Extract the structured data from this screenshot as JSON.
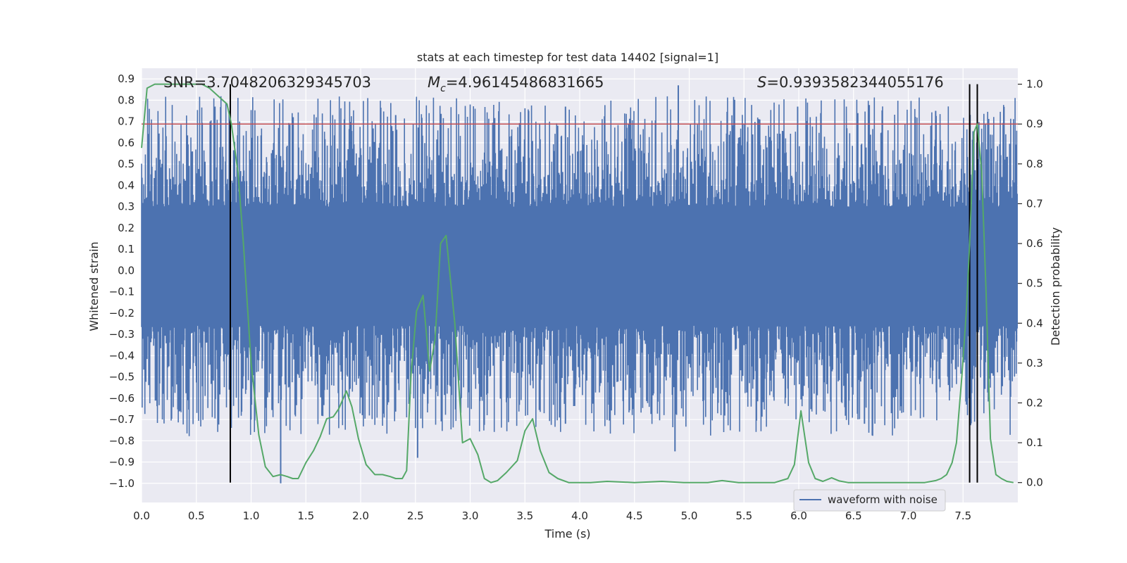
{
  "chart_data": {
    "type": "line",
    "title": "stats at each timestep for test data 14402 [signal=1]",
    "xlabel": "Time (s)",
    "ylabel": "Whitened strain",
    "y2label": "Detection probability",
    "xlim": [
      0.0,
      8.0
    ],
    "ylim": [
      -1.09,
      0.95
    ],
    "y2lim": [
      -0.05,
      1.04
    ],
    "xticks": [
      0.0,
      0.5,
      1.0,
      1.5,
      2.0,
      2.5,
      3.0,
      3.5,
      4.0,
      4.5,
      5.0,
      5.5,
      6.0,
      6.5,
      7.0,
      7.5
    ],
    "xtick_labels": [
      "0.0",
      "0.5",
      "1.0",
      "1.5",
      "2.0",
      "2.5",
      "3.0",
      "3.5",
      "4.0",
      "4.5",
      "5.0",
      "5.5",
      "6.0",
      "6.5",
      "7.0",
      "7.5"
    ],
    "yticks": [
      0.9,
      0.8,
      0.7,
      0.6,
      0.5,
      0.4,
      0.3,
      0.2,
      0.1,
      0.0,
      -0.1,
      -0.2,
      -0.3,
      -0.4,
      -0.5,
      -0.6,
      -0.7,
      -0.8,
      -0.9,
      -1.0
    ],
    "ytick_labels": [
      "0.9",
      "0.8",
      "0.7",
      "0.6",
      "0.5",
      "0.4",
      "0.3",
      "0.2",
      "0.1",
      "0.0",
      "−0.1",
      "−0.2",
      "−0.3",
      "−0.4",
      "−0.5",
      "−0.6",
      "−0.7",
      "−0.8",
      "−0.9",
      "−1.0"
    ],
    "y2ticks": [
      1.0,
      0.9,
      0.8,
      0.7,
      0.6,
      0.5,
      0.4,
      0.3,
      0.2,
      0.1,
      0.0
    ],
    "y2tick_labels": [
      "1.0",
      "0.9",
      "0.8",
      "0.7",
      "0.6",
      "0.5",
      "0.4",
      "0.3",
      "0.2",
      "0.1",
      "0.0"
    ],
    "annotations": {
      "snr": "SNR=3.7048206329345703",
      "mc_symbol": "M",
      "mc_sub": "c",
      "mc_value": "=4.96145486831665",
      "s_symbol": "S",
      "s_value": "=0.9393582344055176"
    },
    "legend": {
      "label": "waveform with noise",
      "location": "lower right"
    },
    "threshold_line": {
      "value": 0.9,
      "axis": "y2",
      "color": "#c44e52"
    },
    "vertical_lines": [
      {
        "x": 0.81,
        "y_top": 1.0,
        "y_bottom": 0.0,
        "axis": "y2"
      },
      {
        "x": 7.56,
        "y_top": 1.0,
        "y_bottom": 0.0,
        "axis": "y2"
      },
      {
        "x": 7.63,
        "y_top": 1.0,
        "y_bottom": 0.0,
        "axis": "y2"
      }
    ],
    "series": [
      {
        "name": "waveform with noise",
        "kind": "noise_envelope",
        "axis": "y",
        "color": "#4c72b0",
        "dense_band": [
          -0.26,
          0.3
        ],
        "max_abs_peak": 1.0,
        "notable_peaks": [
          {
            "x": 0.67,
            "y": 0.77
          },
          {
            "x": 0.8,
            "y": 0.75
          },
          {
            "x": 2.32,
            "y": 0.73
          },
          {
            "x": 3.87,
            "y": 0.77
          },
          {
            "x": 4.9,
            "y": 0.87
          },
          {
            "x": 5.99,
            "y": 0.77
          },
          {
            "x": 7.25,
            "y": 0.75
          },
          {
            "x": 1.27,
            "y": -1.0
          },
          {
            "x": 2.52,
            "y": -0.88
          },
          {
            "x": 4.87,
            "y": -0.85
          },
          {
            "x": 3.87,
            "y": -0.72
          },
          {
            "x": 6.6,
            "y": -0.72
          }
        ]
      },
      {
        "name": "detection probability",
        "kind": "line",
        "axis": "y2",
        "color": "#55a868",
        "x": [
          0.0,
          0.05,
          0.12,
          0.25,
          0.4,
          0.55,
          0.62,
          0.7,
          0.78,
          0.82,
          0.88,
          0.93,
          1.0,
          1.07,
          1.13,
          1.2,
          1.27,
          1.33,
          1.38,
          1.43,
          1.5,
          1.57,
          1.63,
          1.69,
          1.75,
          1.8,
          1.87,
          1.92,
          1.98,
          2.05,
          2.13,
          2.2,
          2.27,
          2.32,
          2.38,
          2.42,
          2.46,
          2.51,
          2.57,
          2.63,
          2.68,
          2.73,
          2.78,
          2.86,
          2.93,
          3.0,
          3.07,
          3.13,
          3.19,
          3.25,
          3.33,
          3.43,
          3.5,
          3.57,
          3.64,
          3.72,
          3.8,
          3.9,
          4.0,
          4.1,
          4.25,
          4.5,
          4.75,
          4.95,
          5.07,
          5.17,
          5.3,
          5.45,
          5.6,
          5.78,
          5.9,
          5.96,
          6.02,
          6.09,
          6.15,
          6.22,
          6.3,
          6.37,
          6.45,
          6.6,
          6.8,
          7.0,
          7.15,
          7.25,
          7.3,
          7.35,
          7.4,
          7.44,
          7.49,
          7.53,
          7.56,
          7.6,
          7.63,
          7.67,
          7.71,
          7.75,
          7.8,
          7.85,
          7.9,
          7.96
        ],
        "y": [
          0.84,
          0.99,
          1.0,
          1.0,
          1.0,
          1.0,
          0.99,
          0.97,
          0.95,
          0.9,
          0.78,
          0.6,
          0.3,
          0.12,
          0.04,
          0.015,
          0.02,
          0.015,
          0.01,
          0.01,
          0.05,
          0.08,
          0.115,
          0.16,
          0.165,
          0.185,
          0.23,
          0.19,
          0.11,
          0.045,
          0.02,
          0.02,
          0.015,
          0.01,
          0.01,
          0.03,
          0.27,
          0.43,
          0.47,
          0.28,
          0.36,
          0.6,
          0.62,
          0.4,
          0.1,
          0.11,
          0.07,
          0.01,
          0.0,
          0.005,
          0.025,
          0.055,
          0.13,
          0.16,
          0.08,
          0.025,
          0.01,
          0.0,
          0.0,
          0.0,
          0.003,
          0.0,
          0.003,
          0.0,
          0.0,
          0.0,
          0.005,
          0.0,
          0.0,
          0.0,
          0.01,
          0.045,
          0.18,
          0.05,
          0.01,
          0.003,
          0.012,
          0.004,
          0.0,
          0.0,
          0.0,
          0.0,
          0.0,
          0.005,
          0.01,
          0.02,
          0.05,
          0.1,
          0.27,
          0.43,
          0.6,
          0.88,
          0.9,
          0.78,
          0.48,
          0.11,
          0.02,
          0.01,
          0.003,
          0.0
        ]
      }
    ]
  }
}
